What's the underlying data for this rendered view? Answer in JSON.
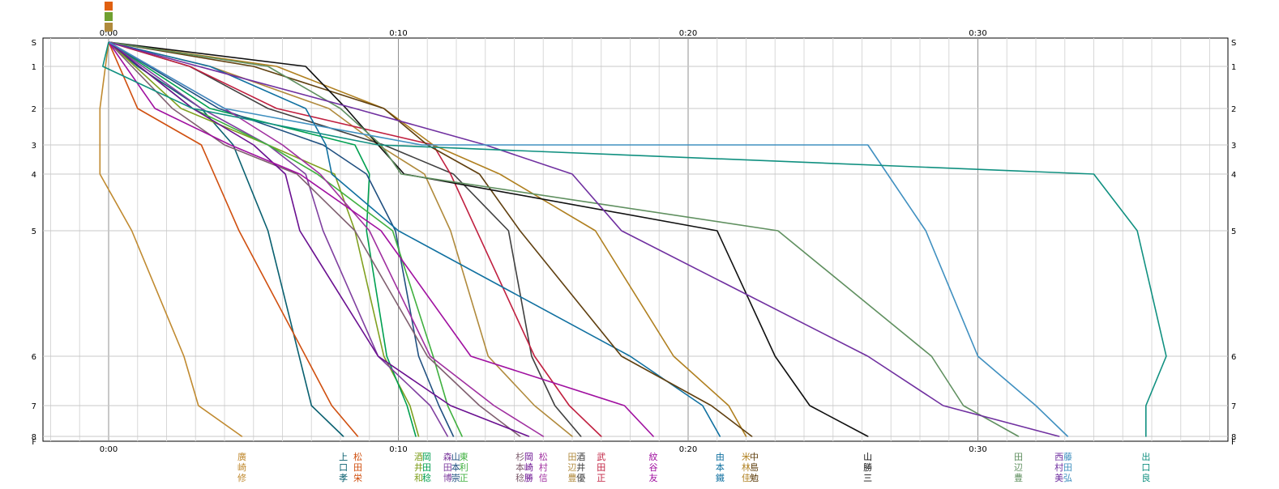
{
  "chart_data": {
    "type": "line",
    "title": "",
    "xlabel": "",
    "ylabel": "",
    "x_unit": "elapsed time (h:mm)",
    "x_ticks": [
      "0:00",
      "0:10",
      "0:20",
      "0:30"
    ],
    "xlim": [
      -2.3,
      38.2
    ],
    "y_ticks": [
      "S",
      "1",
      "2",
      "3",
      "4",
      "5",
      "6",
      "7",
      "8",
      "F"
    ],
    "grid": true,
    "legend": "none (runner names printed vertically below the plot, starting names stacked above)",
    "start_label_colors": [
      "#e06010",
      "#70a030",
      "#b08a3c"
    ],
    "series": [
      {
        "name": "廣崎修",
        "label_chars": [
          "廣",
          "崎",
          "修"
        ],
        "color": "#c08a30",
        "label_x": 4.6,
        "points": [
          [
            0,
            0
          ],
          [
            -0.3,
            2
          ],
          [
            -0.3,
            4
          ],
          [
            0.8,
            5
          ],
          [
            2.6,
            6
          ],
          [
            3.1,
            7
          ],
          [
            4.6,
            8
          ],
          [
            4.6,
            8.1
          ]
        ]
      },
      {
        "name": "上口孝",
        "label_chars": [
          "上",
          "口",
          "孝"
        ],
        "color": "#0a6070",
        "points": [
          [
            0,
            0
          ],
          [
            1.0,
            1
          ],
          [
            3.2,
            2
          ],
          [
            4.3,
            3
          ],
          [
            5.5,
            5
          ],
          [
            7.0,
            7
          ],
          [
            8.1,
            8
          ],
          [
            8.1,
            8.1
          ]
        ]
      },
      {
        "name": "松田栄",
        "label_chars": [
          "松",
          "田",
          "栄"
        ],
        "color": "#d05010",
        "points": [
          [
            0,
            0
          ],
          [
            1.0,
            2
          ],
          [
            3.2,
            3
          ],
          [
            4.5,
            5
          ],
          [
            6.8,
            6
          ],
          [
            7.7,
            7
          ],
          [
            8.6,
            8
          ],
          [
            8.6,
            8.1
          ]
        ]
      },
      {
        "name": "酒井和",
        "label_chars": [
          "酒",
          "井",
          "和"
        ],
        "color": "#80a020",
        "points": [
          [
            0,
            0
          ],
          [
            2.5,
            2
          ],
          [
            5.5,
            3
          ],
          [
            7.8,
            4
          ],
          [
            8.5,
            5
          ],
          [
            9.5,
            6
          ],
          [
            10.4,
            7
          ],
          [
            10.7,
            8
          ],
          [
            10.7,
            8.1
          ]
        ]
      },
      {
        "name": "岡田稔",
        "label_chars": [
          "岡",
          "田",
          "稔"
        ],
        "color": "#00a050",
        "points": [
          [
            0,
            0
          ],
          [
            3.5,
            2
          ],
          [
            8.5,
            3
          ],
          [
            9.0,
            4
          ],
          [
            8.9,
            5
          ],
          [
            9.6,
            6
          ],
          [
            10.3,
            7
          ],
          [
            10.6,
            8
          ],
          [
            10.6,
            8.1
          ]
        ]
      },
      {
        "name": "森田博",
        "label_chars": [
          "森",
          "田",
          "博"
        ],
        "color": "#8040a0",
        "points": [
          [
            0,
            0
          ],
          [
            3.2,
            2
          ],
          [
            5.5,
            3
          ],
          [
            6.8,
            4
          ],
          [
            7.4,
            5
          ],
          [
            9.3,
            6
          ],
          [
            11.1,
            7
          ],
          [
            11.7,
            8
          ],
          [
            11.7,
            8.1
          ]
        ]
      },
      {
        "name": "山本崇",
        "label_chars": [
          "山",
          "本",
          "崇"
        ],
        "color": "#205080",
        "points": [
          [
            0,
            0
          ],
          [
            3.8,
            2
          ],
          [
            7.4,
            3
          ],
          [
            8.9,
            4
          ],
          [
            9.9,
            5
          ],
          [
            10.7,
            6
          ],
          [
            11.4,
            7
          ],
          [
            11.9,
            8
          ],
          [
            11.9,
            8.1
          ]
        ]
      },
      {
        "name": "東利正",
        "label_chars": [
          "東",
          "利",
          "正"
        ],
        "color": "#40b040",
        "points": [
          [
            0,
            0
          ],
          [
            2.9,
            2
          ],
          [
            5.5,
            3
          ],
          [
            7.2,
            4
          ],
          [
            9.8,
            5
          ],
          [
            11.2,
            6
          ],
          [
            11.7,
            7
          ],
          [
            12.2,
            8
          ],
          [
            12.2,
            8.1
          ]
        ]
      },
      {
        "name": "杉本稔",
        "label_chars": [
          "杉",
          "本",
          "稔"
        ],
        "color": "#806070",
        "points": [
          [
            0,
            0
          ],
          [
            2.2,
            2
          ],
          [
            4.0,
            3
          ],
          [
            6.5,
            4
          ],
          [
            8.5,
            5
          ],
          [
            11.0,
            6
          ],
          [
            12.8,
            7
          ],
          [
            14.2,
            8
          ],
          [
            14.2,
            8.1
          ]
        ]
      },
      {
        "name": "岡崎勝",
        "label_chars": [
          "岡",
          "崎",
          "勝"
        ],
        "color": "#6a1090",
        "points": [
          [
            0,
            0
          ],
          [
            2.9,
            2
          ],
          [
            5.0,
            3
          ],
          [
            6.1,
            4
          ],
          [
            6.6,
            5
          ],
          [
            9.3,
            6
          ],
          [
            11.8,
            7
          ],
          [
            14.5,
            8
          ],
          [
            14.5,
            8.1
          ]
        ]
      },
      {
        "name": "松村信",
        "label_chars": [
          "松",
          "村",
          "信"
        ],
        "color": "#a030a0",
        "points": [
          [
            0,
            0
          ],
          [
            4.0,
            2
          ],
          [
            6.0,
            3
          ],
          [
            7.3,
            4
          ],
          [
            9.0,
            5
          ],
          [
            11.1,
            6
          ],
          [
            13.3,
            7
          ],
          [
            15.0,
            8
          ],
          [
            15.0,
            8.1
          ]
        ]
      },
      {
        "name": "田辺豊",
        "label_chars": [
          "田",
          "辺",
          "豊"
        ],
        "color": "#b08a3c",
        "points": [
          [
            0,
            0
          ],
          [
            3.5,
            1
          ],
          [
            7.6,
            2
          ],
          [
            9.3,
            3
          ],
          [
            10.9,
            4
          ],
          [
            11.8,
            5
          ],
          [
            13.1,
            6
          ],
          [
            14.7,
            7
          ],
          [
            16.0,
            8
          ],
          [
            16.0,
            8.1
          ]
        ]
      },
      {
        "name": "酒井優",
        "label_chars": [
          "酒",
          "井",
          "優"
        ],
        "color": "#404040",
        "points": [
          [
            0,
            0
          ],
          [
            2.8,
            1
          ],
          [
            5.5,
            2
          ],
          [
            9.5,
            3
          ],
          [
            11.9,
            4
          ],
          [
            13.8,
            5
          ],
          [
            14.6,
            6
          ],
          [
            15.4,
            7
          ],
          [
            16.3,
            8
          ],
          [
            16.3,
            8.1
          ]
        ]
      },
      {
        "name": "武田正",
        "label_chars": [
          "武",
          "田",
          "正"
        ],
        "color": "#c02040",
        "points": [
          [
            0,
            0
          ],
          [
            2.8,
            1
          ],
          [
            5.8,
            2
          ],
          [
            11.2,
            3
          ],
          [
            11.8,
            4
          ],
          [
            14.7,
            6
          ],
          [
            15.9,
            7
          ],
          [
            17.0,
            8
          ],
          [
            17.0,
            8.1
          ]
        ]
      },
      {
        "name": "紋谷友",
        "label_chars": [
          "紋",
          "谷",
          "友"
        ],
        "color": "#a010a0",
        "points": [
          [
            0,
            0
          ],
          [
            1.6,
            2
          ],
          [
            4.2,
            3
          ],
          [
            6.6,
            4
          ],
          [
            9.4,
            5
          ],
          [
            12.5,
            6
          ],
          [
            17.8,
            7
          ],
          [
            18.8,
            8
          ],
          [
            18.8,
            8.1
          ]
        ]
      },
      {
        "name": "米林佳",
        "label_chars": [
          "米",
          "林",
          "佳"
        ],
        "color": "#b08020",
        "points": [
          [
            0,
            0
          ],
          [
            5.8,
            1
          ],
          [
            9.5,
            2
          ],
          [
            11.2,
            3
          ],
          [
            13.5,
            4
          ],
          [
            16.8,
            5
          ],
          [
            19.5,
            6
          ],
          [
            21.4,
            7
          ],
          [
            22.0,
            8
          ],
          [
            22.0,
            8.1
          ]
        ]
      },
      {
        "name": "由本鐵",
        "label_chars": [
          "由",
          "本",
          "鐵"
        ],
        "color": "#1070a0",
        "points": [
          [
            0,
            0
          ],
          [
            3.5,
            1
          ],
          [
            6.8,
            2
          ],
          [
            7.5,
            3
          ],
          [
            7.7,
            4
          ],
          [
            10.0,
            5
          ],
          [
            18.0,
            6
          ],
          [
            20.5,
            7
          ],
          [
            21.1,
            8
          ],
          [
            21.1,
            8.1
          ]
        ]
      },
      {
        "name": "中島勉",
        "label_chars": [
          "中",
          "島",
          "勉"
        ],
        "color": "#604010",
        "points": [
          [
            0,
            0
          ],
          [
            5.0,
            1
          ],
          [
            9.5,
            2
          ],
          [
            11.0,
            3
          ],
          [
            12.8,
            4
          ],
          [
            14.2,
            5
          ],
          [
            17.7,
            6
          ],
          [
            20.8,
            7
          ],
          [
            22.2,
            8
          ],
          [
            22.2,
            8.1
          ]
        ]
      },
      {
        "name": "山勝三",
        "label_chars": [
          "山",
          "勝",
          "三"
        ],
        "color": "#101010",
        "points": [
          [
            0,
            0
          ],
          [
            6.8,
            1
          ],
          [
            8.2,
            2
          ],
          [
            9.3,
            3
          ],
          [
            10.2,
            4
          ],
          [
            21.0,
            5
          ],
          [
            23.0,
            6
          ],
          [
            24.2,
            7
          ],
          [
            26.2,
            8
          ],
          [
            26.2,
            8.1
          ]
        ]
      },
      {
        "name": "田辺豊",
        "label_chars": [
          "田",
          "辺",
          "豊"
        ],
        "color": "#609060",
        "points": [
          [
            0,
            0
          ],
          [
            5.5,
            1
          ],
          [
            8.0,
            2
          ],
          [
            9.4,
            3
          ],
          [
            10.1,
            4
          ],
          [
            23.1,
            5
          ],
          [
            28.4,
            6
          ],
          [
            29.5,
            7
          ],
          [
            31.4,
            8
          ],
          [
            31.4,
            8.1
          ]
        ]
      },
      {
        "name": "西村美",
        "label_chars": [
          "西",
          "村",
          "美"
        ],
        "color": "#7030a0",
        "points": [
          [
            0,
            0
          ],
          [
            8.5,
            2
          ],
          [
            13.0,
            3
          ],
          [
            16.0,
            4
          ],
          [
            17.7,
            5
          ],
          [
            26.2,
            6
          ],
          [
            28.8,
            7
          ],
          [
            32.8,
            8
          ],
          [
            32.8,
            8.1
          ]
        ]
      },
      {
        "name": "藤田弘",
        "label_chars": [
          "藤",
          "田",
          "弘"
        ],
        "color": "#4090c0",
        "points": [
          [
            0,
            0
          ],
          [
            4.0,
            2
          ],
          [
            10.8,
            3
          ],
          [
            26.2,
            3
          ],
          [
            28.2,
            5
          ],
          [
            30.0,
            6
          ],
          [
            32.0,
            7
          ],
          [
            33.1,
            8
          ],
          [
            33.1,
            8.1
          ]
        ]
      },
      {
        "name": "出口良",
        "label_chars": [
          "出",
          "口",
          "良"
        ],
        "color": "#109080",
        "points": [
          [
            0,
            0
          ],
          [
            -0.2,
            1
          ],
          [
            2.9,
            2
          ],
          [
            9.3,
            3
          ],
          [
            34.0,
            4
          ],
          [
            35.5,
            5
          ],
          [
            36.5,
            6
          ],
          [
            35.8,
            7
          ],
          [
            35.8,
            8
          ],
          [
            35.8,
            8.1
          ]
        ]
      }
    ]
  }
}
